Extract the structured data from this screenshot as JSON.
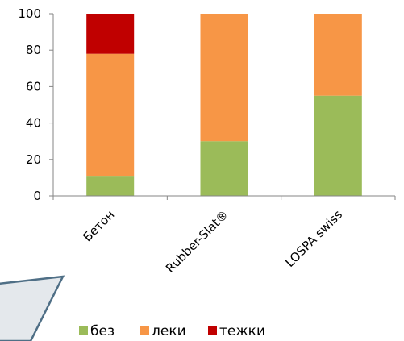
{
  "chart_data": {
    "type": "bar",
    "stacked": true,
    "categories": [
      "Бетон",
      "Rubber-Slat®",
      "LOSPA swiss"
    ],
    "series": [
      {
        "name": "без",
        "values": [
          11,
          30,
          55
        ],
        "color": "#9BBB59"
      },
      {
        "name": "леки",
        "values": [
          67,
          70,
          45
        ],
        "color": "#F79646"
      },
      {
        "name": "тежки",
        "values": [
          22,
          0,
          0
        ],
        "color": "#C00000"
      }
    ],
    "ylim": [
      0,
      100
    ],
    "yticks": [
      0,
      20,
      40,
      60,
      80,
      100
    ],
    "grid": false,
    "legend_position": "bottom"
  }
}
